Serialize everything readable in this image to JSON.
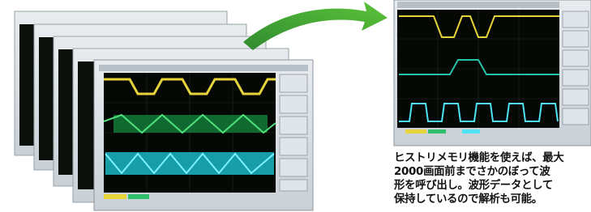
{
  "caption": {
    "lines": [
      "ヒストリメモリ機能を使えば、最大",
      "2000画面前までさかのぼって波",
      "形を呼び出し。波形データとして",
      "保持しているので解析も可能。"
    ]
  }
}
